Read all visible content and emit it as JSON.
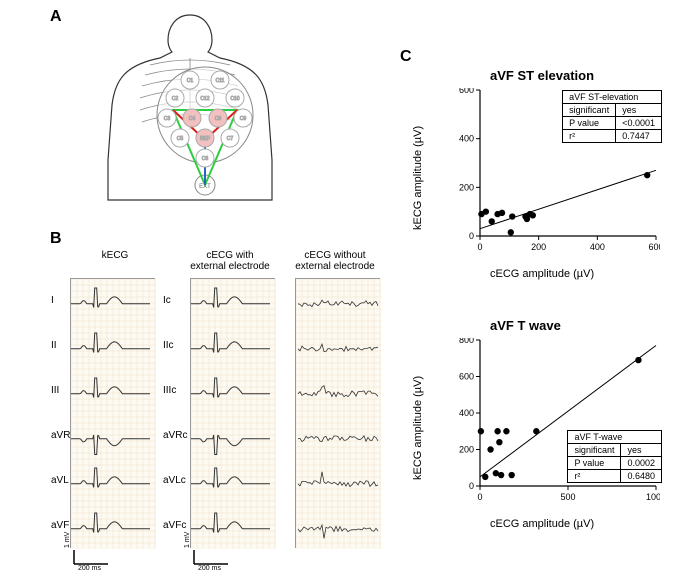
{
  "panels": {
    "A": "A",
    "B": "B",
    "C": "C"
  },
  "panelA": {
    "electrodes": [
      "C1",
      "C11",
      "C12",
      "C10",
      "C2",
      "C3",
      "C4",
      "C5",
      "C6",
      "C7",
      "C8",
      "C9",
      "REF",
      "EXT"
    ],
    "line_colors": {
      "red": "#d91e18",
      "green": "#2ecc40",
      "blue": "#2a64c4"
    }
  },
  "panelB": {
    "col_titles": {
      "kecg": "kECG",
      "cecg_with": "cECG with external electrode",
      "cecg_without": "cECG without external electrode"
    },
    "kecg_leads": [
      "I",
      "II",
      "III",
      "aVR",
      "aVL",
      "aVF"
    ],
    "cecg_leads": [
      "Ic",
      "IIc",
      "IIIc",
      "aVRc",
      "aVLc",
      "aVFc"
    ],
    "scale_y": "1 mV",
    "scale_x": "200 ms",
    "trace_color": "#333333",
    "grid_color": "#edd9b8"
  },
  "panelC": {
    "chart1": {
      "title": "aVF ST elevation",
      "xlabel": "cECG amplitude (µV)",
      "ylabel": "kECG amplitude (µV)",
      "xlim": [
        0,
        600
      ],
      "ylim": [
        0,
        600
      ],
      "xticks": [
        0,
        200,
        400,
        600
      ],
      "yticks": [
        0,
        200,
        400,
        600
      ],
      "points": [
        [
          5,
          90
        ],
        [
          20,
          100
        ],
        [
          40,
          60
        ],
        [
          60,
          90
        ],
        [
          75,
          95
        ],
        [
          105,
          15
        ],
        [
          110,
          80
        ],
        [
          155,
          80
        ],
        [
          160,
          70
        ],
        [
          170,
          90
        ],
        [
          180,
          85
        ],
        [
          570,
          250
        ]
      ],
      "fit_intercept": 30,
      "fit_slope": 0.4,
      "inset": {
        "title": "aVF  ST-elevation",
        "rows": [
          [
            "significant",
            "yes"
          ],
          [
            "P value",
            "<0.0001"
          ],
          [
            "r²",
            "0.7447"
          ]
        ],
        "pos": "top"
      },
      "point_color": "#000000",
      "line_color": "#000000",
      "tick_fontsize": 9
    },
    "chart2": {
      "title": "aVF T wave",
      "xlabel": "cECG amplitude (µV)",
      "ylabel": "kECG amplitude (µV)",
      "xlim": [
        0,
        1000
      ],
      "ylim": [
        0,
        800
      ],
      "xticks": [
        0,
        500,
        1000
      ],
      "yticks": [
        0,
        200,
        400,
        600,
        800
      ],
      "points": [
        [
          5,
          300
        ],
        [
          30,
          50
        ],
        [
          60,
          200
        ],
        [
          90,
          70
        ],
        [
          100,
          300
        ],
        [
          110,
          240
        ],
        [
          120,
          60
        ],
        [
          150,
          300
        ],
        [
          180,
          60
        ],
        [
          320,
          300
        ],
        [
          900,
          690
        ]
      ],
      "fit_intercept": 50,
      "fit_slope": 0.72,
      "inset": {
        "title": "aVF  T-wave",
        "rows": [
          [
            "significant",
            "yes"
          ],
          [
            "P value",
            "0.0002"
          ],
          [
            "r²",
            "0.6480"
          ]
        ],
        "pos": "bottom"
      },
      "point_color": "#000000",
      "line_color": "#000000",
      "tick_fontsize": 9
    }
  }
}
